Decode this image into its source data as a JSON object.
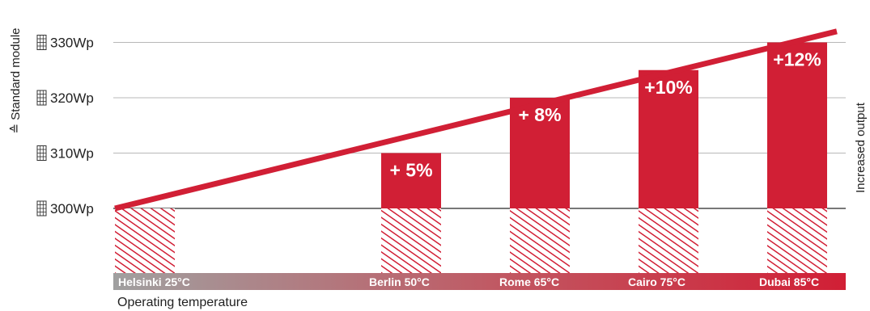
{
  "chart_data": {
    "type": "bar",
    "categories": [
      "Helsinki 25°C",
      "Berlin 50°C",
      "Rome 65°C",
      "Cairo 75°C",
      "Dubai 85°C"
    ],
    "values": [
      300,
      310,
      320,
      325,
      330
    ],
    "bar_labels": [
      "",
      "+ 5%",
      "+ 8%",
      "+10%",
      "+12%"
    ],
    "y_ticks": [
      {
        "value": 300,
        "label": "300Wp"
      },
      {
        "value": 310,
        "label": "310Wp"
      },
      {
        "value": 320,
        "label": "320Wp"
      },
      {
        "value": 330,
        "label": "330Wp"
      }
    ],
    "ylim": [
      300,
      330
    ],
    "ylabel": "≙ Standard module",
    "right_label": "Increased output",
    "xlabel": "Operating temperature",
    "trend_line": {
      "x_start": "Helsinki 25°C",
      "y_start": 300,
      "y_end": 332
    },
    "legend": "none",
    "grid": true
  },
  "colors": {
    "accent": "#d11f35",
    "hatch": "#d11f35",
    "gradient_start": "#a0a0a0",
    "gradient_end": "#d11f35",
    "grid": "#b8b8b8",
    "baseline": "#777777"
  },
  "icons": {
    "tick": "solar-module-icon"
  }
}
